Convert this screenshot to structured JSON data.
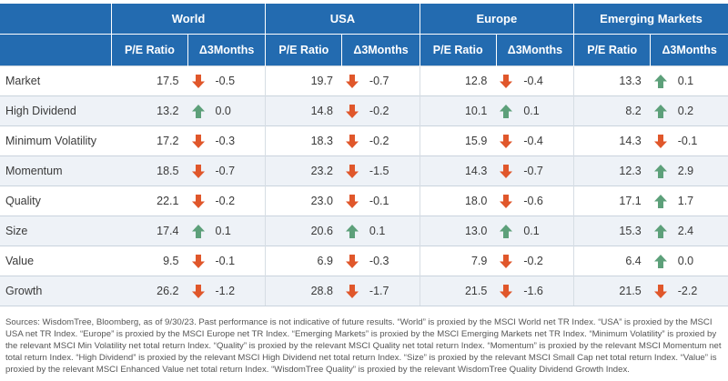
{
  "colors": {
    "header_bg": "#236bb0",
    "up_arrow": "#5da07a",
    "down_arrow": "#e0572b",
    "stripe": "#eef2f7"
  },
  "regions": [
    "World",
    "USA",
    "Europe",
    "Emerging Markets"
  ],
  "subheaders": {
    "pe": "P/E Ratio",
    "delta": "Δ3Months"
  },
  "rows": [
    {
      "label": "Market",
      "cells": [
        {
          "pe": "17.5",
          "dir": "down",
          "delta": "-0.5"
        },
        {
          "pe": "19.7",
          "dir": "down",
          "delta": "-0.7"
        },
        {
          "pe": "12.8",
          "dir": "down",
          "delta": "-0.4"
        },
        {
          "pe": "13.3",
          "dir": "up",
          "delta": "0.1"
        }
      ]
    },
    {
      "label": "High Dividend",
      "cells": [
        {
          "pe": "13.2",
          "dir": "up",
          "delta": "0.0"
        },
        {
          "pe": "14.8",
          "dir": "down",
          "delta": "-0.2"
        },
        {
          "pe": "10.1",
          "dir": "up",
          "delta": "0.1"
        },
        {
          "pe": "8.2",
          "dir": "up",
          "delta": "0.2"
        }
      ]
    },
    {
      "label": "Minimum Volatility",
      "cells": [
        {
          "pe": "17.2",
          "dir": "down",
          "delta": "-0.3"
        },
        {
          "pe": "18.3",
          "dir": "down",
          "delta": "-0.2"
        },
        {
          "pe": "15.9",
          "dir": "down",
          "delta": "-0.4"
        },
        {
          "pe": "14.3",
          "dir": "down",
          "delta": "-0.1"
        }
      ]
    },
    {
      "label": "Momentum",
      "cells": [
        {
          "pe": "18.5",
          "dir": "down",
          "delta": "-0.7"
        },
        {
          "pe": "23.2",
          "dir": "down",
          "delta": "-1.5"
        },
        {
          "pe": "14.3",
          "dir": "down",
          "delta": "-0.7"
        },
        {
          "pe": "12.3",
          "dir": "up",
          "delta": "2.9"
        }
      ]
    },
    {
      "label": "Quality",
      "cells": [
        {
          "pe": "22.1",
          "dir": "down",
          "delta": "-0.2"
        },
        {
          "pe": "23.0",
          "dir": "down",
          "delta": "-0.1"
        },
        {
          "pe": "18.0",
          "dir": "down",
          "delta": "-0.6"
        },
        {
          "pe": "17.1",
          "dir": "up",
          "delta": "1.7"
        }
      ]
    },
    {
      "label": "Size",
      "cells": [
        {
          "pe": "17.4",
          "dir": "up",
          "delta": "0.1"
        },
        {
          "pe": "20.6",
          "dir": "up",
          "delta": "0.1"
        },
        {
          "pe": "13.0",
          "dir": "up",
          "delta": "0.1"
        },
        {
          "pe": "15.3",
          "dir": "up",
          "delta": "2.4"
        }
      ]
    },
    {
      "label": "Value",
      "cells": [
        {
          "pe": "9.5",
          "dir": "down",
          "delta": "-0.1"
        },
        {
          "pe": "6.9",
          "dir": "down",
          "delta": "-0.3"
        },
        {
          "pe": "7.9",
          "dir": "down",
          "delta": "-0.2"
        },
        {
          "pe": "6.4",
          "dir": "up",
          "delta": "0.0"
        }
      ]
    },
    {
      "label": "Growth",
      "cells": [
        {
          "pe": "26.2",
          "dir": "down",
          "delta": "-1.2"
        },
        {
          "pe": "28.8",
          "dir": "down",
          "delta": "-1.7"
        },
        {
          "pe": "21.5",
          "dir": "down",
          "delta": "-1.6"
        },
        {
          "pe": "21.5",
          "dir": "down",
          "delta": "-2.2"
        }
      ]
    }
  ],
  "footnote": "Sources: WisdomTree, Bloomberg, as of 9/30/23. Past performance is not indicative of future results. “World” is proxied by the MSCI World net TR Index. “USA” is proxied by the MSCI USA net TR Index. “Europe” is proxied by the MSCI Europe net TR Index. “Emerging Markets” is proxied by the MSCI Emerging Markets net TR Index. “Minimum Volatility” is proxied by the relevant MSCI Min Volatility net total return Index. “Quality” is proxied by the relevant MSCI Quality net total return Index. “Momentum” is proxied by the relevant MSCI Momentum net total return Index. “High Dividend” is proxied by the relevant MSCI High Dividend net total return Index. “Size” is proxied by the relevant MSCI Small Cap net total return Index. “Value” is proxied by the relevant MSCI Enhanced Value net total return Index. “WisdomTree Quality” is proxied by the relevant WisdomTree Quality Dividend Growth Index."
}
